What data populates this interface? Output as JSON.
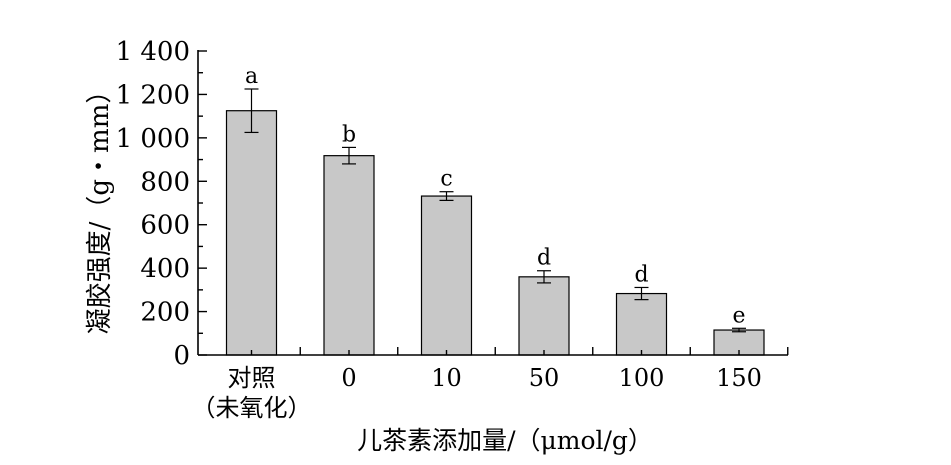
{
  "chart_data": {
    "type": "bar",
    "categories": [
      "对照\n（未氧化）",
      "0",
      "10",
      "50",
      "100",
      "150"
    ],
    "values": [
      1125,
      918,
      732,
      360,
      283,
      115
    ],
    "errors": [
      100,
      38,
      20,
      28,
      28,
      8
    ],
    "significance_letters": [
      "a",
      "b",
      "c",
      "d",
      "d",
      "e"
    ],
    "ylabel": "凝胶强度/（g・mm）",
    "xlabel": "儿茶素添加量/（μmol/g）",
    "ylim": [
      0,
      1400
    ],
    "yticks": [
      0,
      200,
      400,
      600,
      800,
      1000,
      1200,
      1400
    ],
    "ytick_labels": [
      "0",
      "200",
      "400",
      "600",
      "800",
      "1 000",
      "1 200",
      "1 400"
    ],
    "grid": false,
    "bar_color": "#c8c8c8"
  }
}
